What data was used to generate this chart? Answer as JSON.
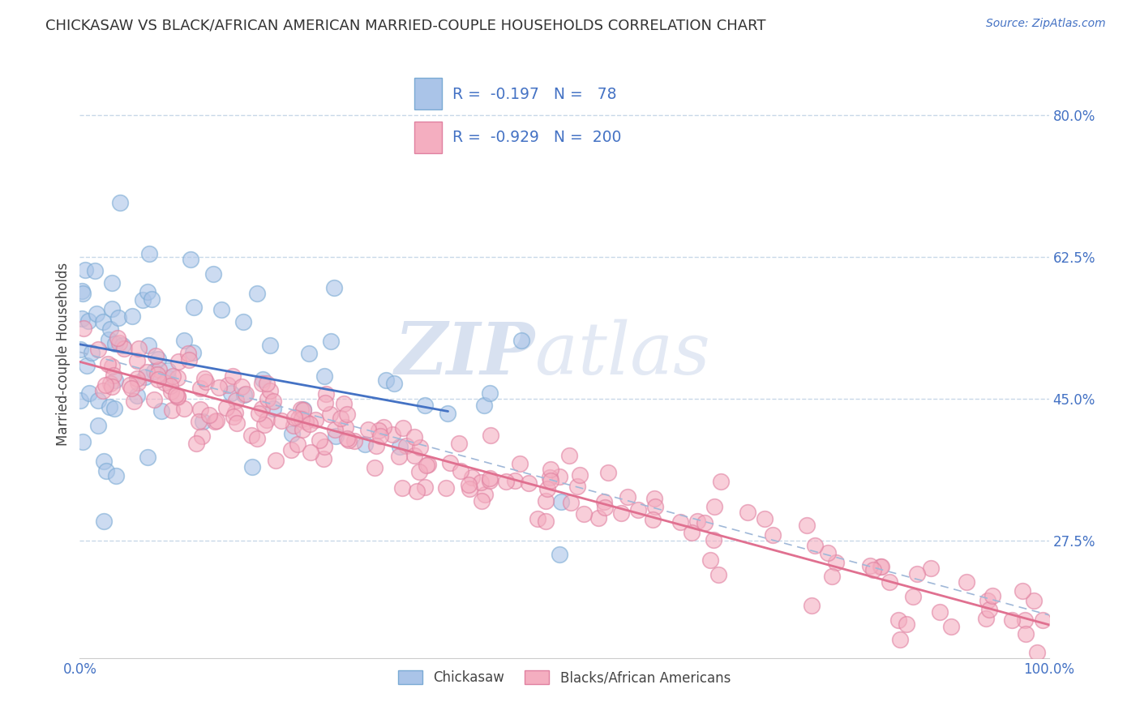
{
  "title": "CHICKASAW VS BLACK/AFRICAN AMERICAN MARRIED-COUPLE HOUSEHOLDS CORRELATION CHART",
  "source": "Source: ZipAtlas.com",
  "ylabel": "Married-couple Households",
  "xlabel": "",
  "xlim": [
    0.0,
    1.0
  ],
  "ylim": [
    0.13,
    0.88
  ],
  "yticks": [
    0.275,
    0.45,
    0.625,
    0.8
  ],
  "ytick_labels": [
    "27.5%",
    "45.0%",
    "62.5%",
    "80.0%"
  ],
  "xtick_labels": [
    "0.0%",
    "100.0%"
  ],
  "xticks": [
    0.0,
    1.0
  ],
  "chickasaw_color": "#aac4e8",
  "chickasaw_edge": "#7aaad4",
  "pink_color": "#f4aec0",
  "pink_edge": "#e080a0",
  "blue_line_color": "#4472c4",
  "pink_line_color": "#e07090",
  "dashed_line_color": "#a0b8d8",
  "R_chickasaw": -0.197,
  "N_chickasaw": 78,
  "R_pink": -0.929,
  "N_pink": 200,
  "watermark_zip": "ZIP",
  "watermark_atlas": "atlas",
  "background_color": "#ffffff",
  "grid_color": "#c8d8e8",
  "title_fontsize": 13,
  "axis_label_fontsize": 12,
  "tick_fontsize": 12
}
